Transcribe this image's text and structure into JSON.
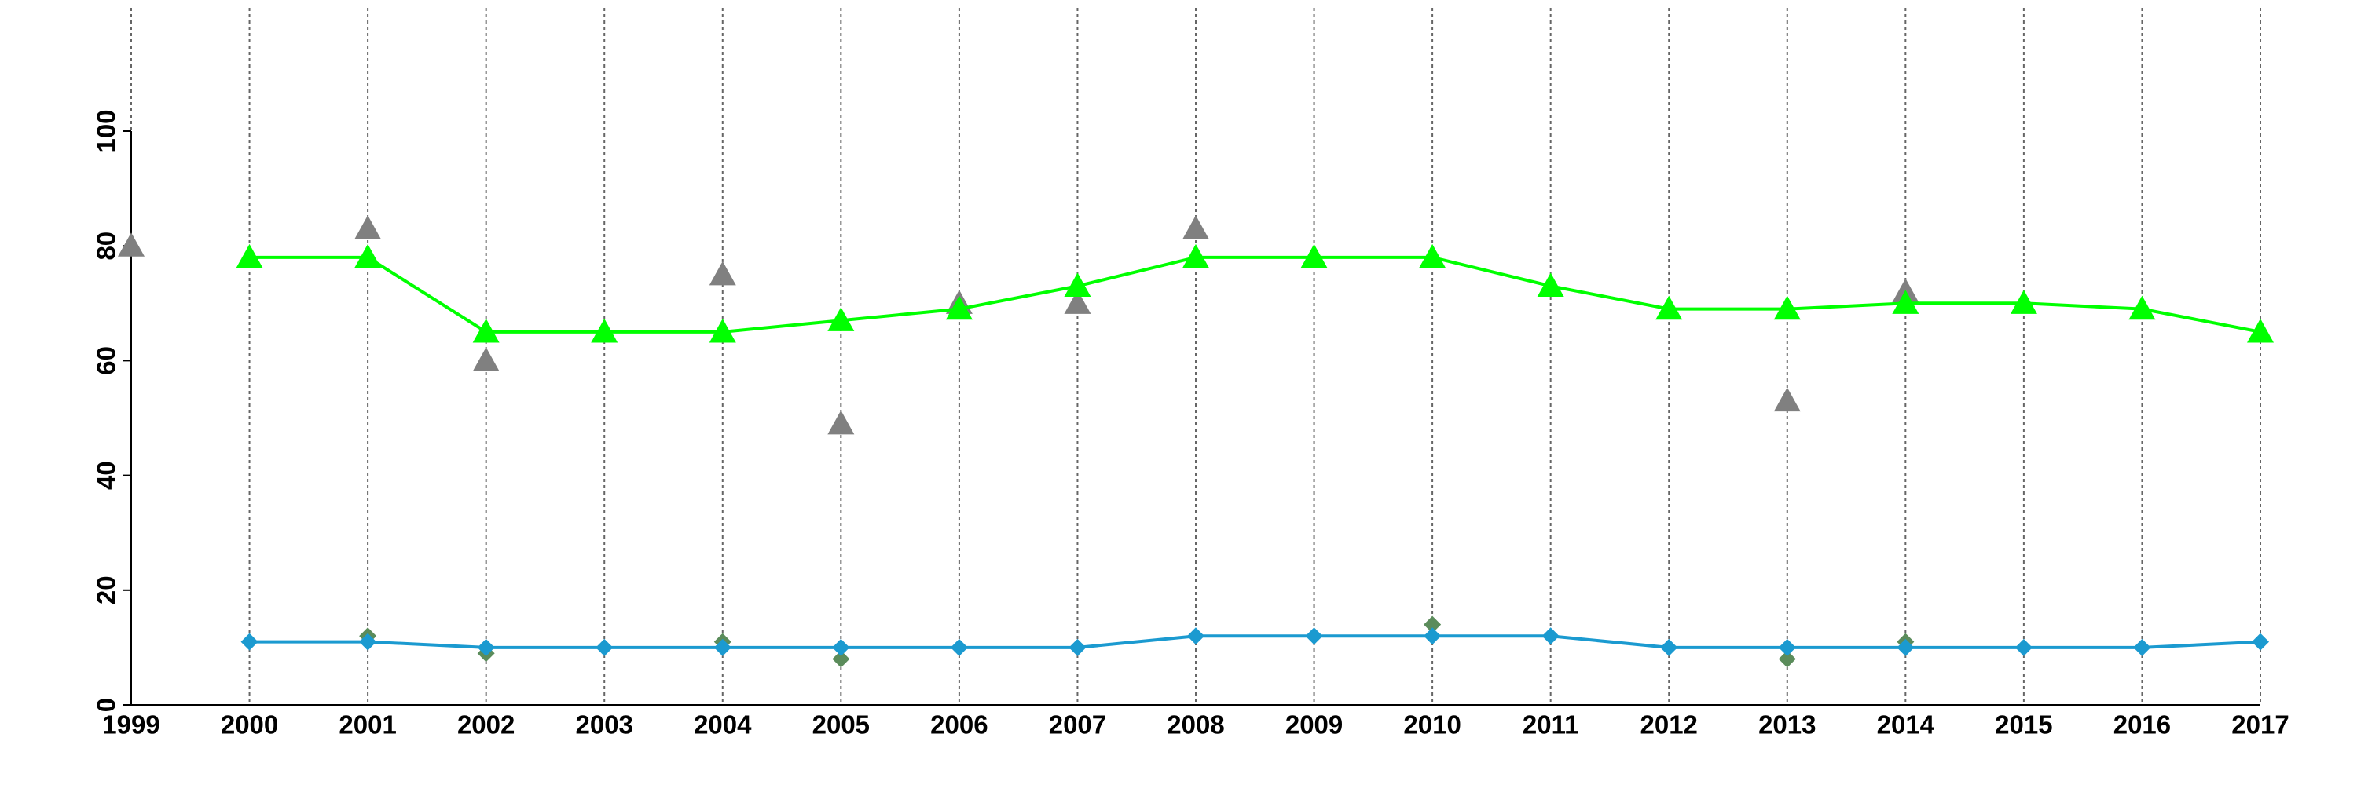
{
  "chart_data": {
    "type": "line",
    "x": [
      1999,
      2000,
      2001,
      2002,
      2003,
      2004,
      2005,
      2006,
      2007,
      2008,
      2009,
      2010,
      2011,
      2012,
      2013,
      2014,
      2015,
      2016,
      2017
    ],
    "xlim": [
      1999,
      2017
    ],
    "xticks": [
      1999,
      2000,
      2001,
      2002,
      2003,
      2004,
      2005,
      2006,
      2007,
      2008,
      2009,
      2010,
      2011,
      2012,
      2013,
      2014,
      2015,
      2016,
      2017
    ],
    "ylim": [
      0,
      100
    ],
    "yticks": [
      0,
      20,
      40,
      60,
      80,
      100
    ],
    "grid": "x",
    "series": [
      {
        "color": "#808080",
        "marker": "triangle",
        "line": false,
        "values": [
          80,
          null,
          83,
          60,
          null,
          75,
          49,
          70,
          70,
          83,
          null,
          null,
          null,
          null,
          53,
          72,
          null,
          null,
          null
        ]
      },
      {
        "color": "#00ff00",
        "marker": "triangle",
        "line": true,
        "values": [
          null,
          78,
          78,
          65,
          65,
          65,
          67,
          69,
          73,
          78,
          78,
          78,
          73,
          69,
          69,
          70,
          70,
          69,
          65
        ]
      },
      {
        "color": "#5b8c5b",
        "marker": "diamond",
        "line": false,
        "values": [
          null,
          null,
          12,
          9,
          null,
          11,
          8,
          null,
          null,
          null,
          null,
          14,
          null,
          null,
          8,
          11,
          null,
          null,
          null
        ]
      },
      {
        "color": "#1b9ad0",
        "marker": "diamond",
        "line": true,
        "values": [
          null,
          11,
          11,
          10,
          10,
          10,
          10,
          10,
          10,
          12,
          12,
          12,
          12,
          10,
          10,
          10,
          10,
          10,
          11
        ]
      }
    ]
  }
}
